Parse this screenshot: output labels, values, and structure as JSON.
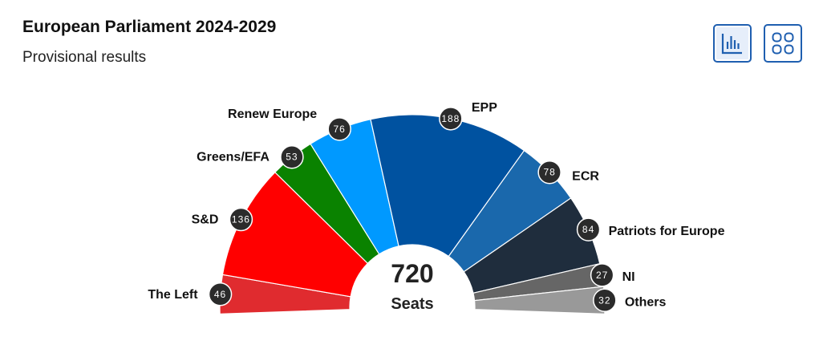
{
  "header": {
    "title": "European Parliament 2024-2029",
    "subtitle": "Provisional results"
  },
  "toolbar": {
    "chart_view_icon": "bar-chart-icon",
    "grid_view_icon": "grid-icon",
    "accent_color": "#1f5fb0"
  },
  "chart_data": {
    "type": "parliament-hemicycle",
    "title": "European Parliament 2024-2029",
    "subtitle": "Provisional results",
    "total_seats": 720,
    "total_text": "720",
    "total_label": "Seats",
    "parties": [
      {
        "name": "The Left",
        "seats": 46,
        "color": "#e02b2f"
      },
      {
        "name": "S&D",
        "seats": 136,
        "color": "#ff0000"
      },
      {
        "name": "Greens/EFA",
        "seats": 53,
        "color": "#0a8200"
      },
      {
        "name": "Renew Europe",
        "seats": 76,
        "color": "#0099ff"
      },
      {
        "name": "EPP",
        "seats": 188,
        "color": "#0052a0"
      },
      {
        "name": "ECR",
        "seats": 78,
        "color": "#1a68ac"
      },
      {
        "name": "Patriots for Europe",
        "seats": 84,
        "color": "#1f2d3d"
      },
      {
        "name": "NI",
        "seats": 27,
        "color": "#666666"
      },
      {
        "name": "Others",
        "seats": 32,
        "color": "#999999"
      }
    ]
  }
}
